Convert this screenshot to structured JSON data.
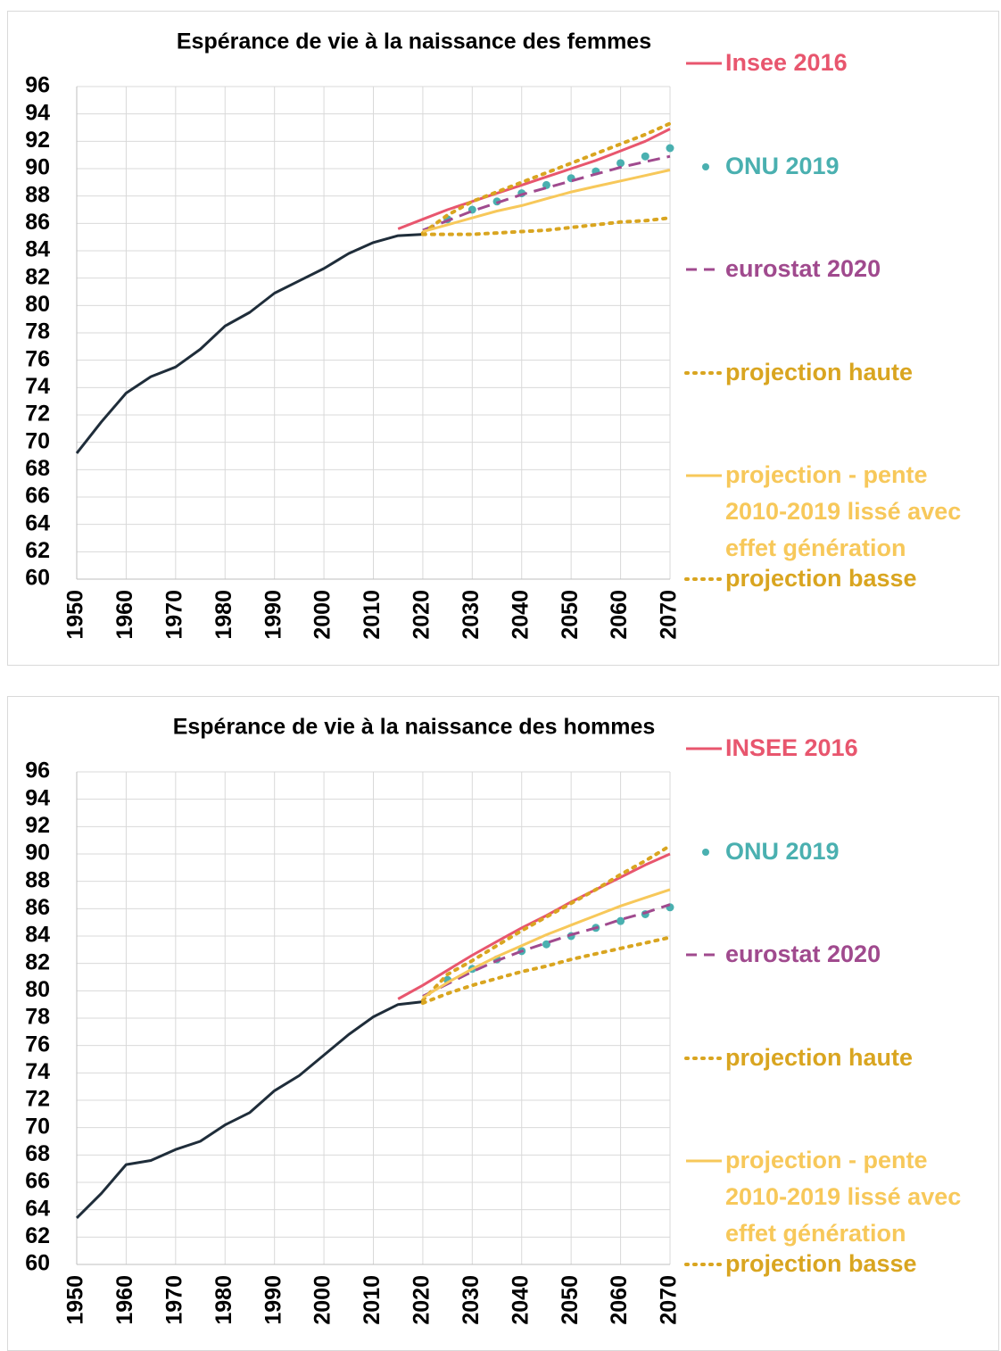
{
  "chart_data": [
    {
      "type": "line",
      "title": "Espérance de vie à la naissance des femmes",
      "x": [
        1950,
        1955,
        1960,
        1965,
        1970,
        1975,
        1980,
        1985,
        1990,
        1995,
        2000,
        2005,
        2010,
        2015,
        2020,
        2025,
        2030,
        2035,
        2040,
        2045,
        2050,
        2055,
        2060,
        2065,
        2070
      ],
      "xlim": [
        1950,
        2070
      ],
      "xticks": [
        1950,
        1960,
        1970,
        1980,
        1990,
        2000,
        2010,
        2020,
        2030,
        2040,
        2050,
        2060,
        2070
      ],
      "ylim": [
        60,
        96
      ],
      "yticks": [
        60,
        62,
        64,
        66,
        68,
        70,
        72,
        74,
        76,
        78,
        80,
        82,
        84,
        86,
        88,
        90,
        92,
        94,
        96
      ],
      "grid": true,
      "series": [
        {
          "color": "#1f2d3a",
          "style": "solid",
          "values": [
            69.2,
            71.5,
            73.6,
            74.8,
            75.5,
            76.8,
            78.5,
            79.5,
            80.9,
            81.8,
            82.7,
            83.8,
            84.6,
            85.1,
            85.2,
            null,
            null,
            null,
            null,
            null,
            null,
            null,
            null,
            null,
            null
          ]
        },
        {
          "name": "Insee 2016",
          "color": "#e8566e",
          "style": "solid",
          "values": [
            null,
            null,
            null,
            null,
            null,
            null,
            null,
            null,
            null,
            null,
            null,
            null,
            null,
            85.6,
            86.3,
            87.0,
            87.6,
            88.2,
            88.8,
            89.4,
            90.0,
            90.6,
            91.3,
            92.0,
            92.9
          ]
        },
        {
          "name": "ONU 2019",
          "color": "#4ab0b0",
          "style": "dots",
          "values": [
            null,
            null,
            null,
            null,
            null,
            null,
            null,
            null,
            null,
            null,
            null,
            null,
            null,
            null,
            null,
            86.3,
            87.0,
            87.6,
            88.2,
            88.8,
            89.3,
            89.8,
            90.4,
            90.9,
            91.5
          ]
        },
        {
          "name": "eurostat 2020",
          "color": "#a04a8e",
          "style": "dash",
          "values": [
            null,
            null,
            null,
            null,
            null,
            null,
            null,
            null,
            null,
            null,
            null,
            null,
            null,
            null,
            85.5,
            86.2,
            86.9,
            87.5,
            88.1,
            88.6,
            89.1,
            89.6,
            90.1,
            90.5,
            90.9
          ]
        },
        {
          "name": "projection haute",
          "color": "#d9a520",
          "style": "dot",
          "values": [
            null,
            null,
            null,
            null,
            null,
            null,
            null,
            null,
            null,
            null,
            null,
            null,
            null,
            null,
            85.3,
            86.6,
            87.6,
            88.3,
            89.0,
            89.7,
            90.4,
            91.1,
            91.8,
            92.5,
            93.3
          ]
        },
        {
          "name": "projection - pente 2010-2019 lissé avec effet génération",
          "color": "#f7c85a",
          "style": "solid",
          "values": [
            null,
            null,
            null,
            null,
            null,
            null,
            null,
            null,
            null,
            null,
            null,
            null,
            null,
            null,
            85.4,
            85.9,
            86.4,
            86.9,
            87.3,
            87.8,
            88.3,
            88.7,
            89.1,
            89.5,
            89.9
          ]
        },
        {
          "name": "projection basse",
          "color": "#d9a520",
          "style": "dot",
          "values": [
            null,
            null,
            null,
            null,
            null,
            null,
            null,
            null,
            null,
            null,
            null,
            null,
            null,
            null,
            85.2,
            85.2,
            85.2,
            85.3,
            85.4,
            85.5,
            85.7,
            85.9,
            86.1,
            86.2,
            86.4
          ]
        }
      ]
    },
    {
      "type": "line",
      "title": "Espérance de vie à la naissance des hommes",
      "x": [
        1950,
        1955,
        1960,
        1965,
        1970,
        1975,
        1980,
        1985,
        1990,
        1995,
        2000,
        2005,
        2010,
        2015,
        2020,
        2025,
        2030,
        2035,
        2040,
        2045,
        2050,
        2055,
        2060,
        2065,
        2070
      ],
      "xlim": [
        1950,
        2070
      ],
      "xticks": [
        1950,
        1960,
        1970,
        1980,
        1990,
        2000,
        2010,
        2020,
        2030,
        2040,
        2050,
        2060,
        2070
      ],
      "ylim": [
        60,
        96
      ],
      "yticks": [
        60,
        62,
        64,
        66,
        68,
        70,
        72,
        74,
        76,
        78,
        80,
        82,
        84,
        86,
        88,
        90,
        92,
        94,
        96
      ],
      "grid": true,
      "series": [
        {
          "color": "#1f2d3a",
          "style": "solid",
          "values": [
            63.4,
            65.2,
            67.3,
            67.6,
            68.4,
            69.0,
            70.2,
            71.1,
            72.7,
            73.8,
            75.3,
            76.8,
            78.1,
            79.0,
            79.2,
            null,
            null,
            null,
            null,
            null,
            null,
            null,
            null,
            null,
            null
          ]
        },
        {
          "name": "INSEE 2016",
          "color": "#e8566e",
          "style": "solid",
          "values": [
            null,
            null,
            null,
            null,
            null,
            null,
            null,
            null,
            null,
            null,
            null,
            null,
            null,
            79.4,
            80.4,
            81.5,
            82.6,
            83.6,
            84.6,
            85.5,
            86.5,
            87.4,
            88.3,
            89.2,
            90.0
          ]
        },
        {
          "name": "ONU 2019",
          "color": "#4ab0b0",
          "style": "dots",
          "values": [
            null,
            null,
            null,
            null,
            null,
            null,
            null,
            null,
            null,
            null,
            null,
            null,
            null,
            null,
            null,
            80.8,
            81.6,
            82.3,
            82.9,
            83.4,
            84.0,
            84.6,
            85.1,
            85.6,
            86.1
          ]
        },
        {
          "name": "eurostat 2020",
          "color": "#a04a8e",
          "style": "dash",
          "values": [
            null,
            null,
            null,
            null,
            null,
            null,
            null,
            null,
            null,
            null,
            null,
            null,
            null,
            null,
            79.6,
            80.5,
            81.4,
            82.2,
            82.9,
            83.5,
            84.1,
            84.6,
            85.2,
            85.7,
            86.3
          ]
        },
        {
          "name": "projection haute",
          "color": "#d9a520",
          "style": "dot",
          "values": [
            null,
            null,
            null,
            null,
            null,
            null,
            null,
            null,
            null,
            null,
            null,
            null,
            null,
            null,
            79.3,
            81.2,
            82.2,
            83.3,
            84.4,
            85.4,
            86.4,
            87.4,
            88.5,
            89.5,
            90.6
          ]
        },
        {
          "name": "projection - pente 2010-2019 lissé avec effet génération",
          "color": "#f7c85a",
          "style": "solid",
          "values": [
            null,
            null,
            null,
            null,
            null,
            null,
            null,
            null,
            null,
            null,
            null,
            null,
            null,
            null,
            79.5,
            80.6,
            81.6,
            82.5,
            83.3,
            84.1,
            84.8,
            85.5,
            86.2,
            86.8,
            87.4
          ]
        },
        {
          "name": "projection basse",
          "color": "#d9a520",
          "style": "dot",
          "values": [
            null,
            null,
            null,
            null,
            null,
            null,
            null,
            null,
            null,
            null,
            null,
            null,
            null,
            null,
            79.1,
            79.8,
            80.4,
            80.9,
            81.4,
            81.8,
            82.3,
            82.7,
            83.1,
            83.5,
            83.9
          ]
        }
      ]
    }
  ]
}
